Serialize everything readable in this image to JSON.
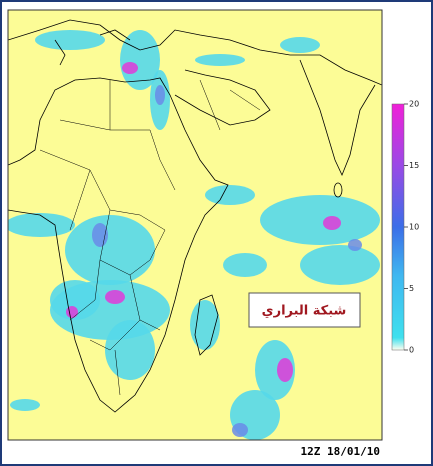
{
  "map": {
    "timestamp": "12Z 18/01/10",
    "watermark": "شبكة البراري",
    "colorbar": {
      "range": [
        0,
        20
      ],
      "ticks": [
        0,
        5,
        10,
        15,
        20
      ]
    }
  }
}
